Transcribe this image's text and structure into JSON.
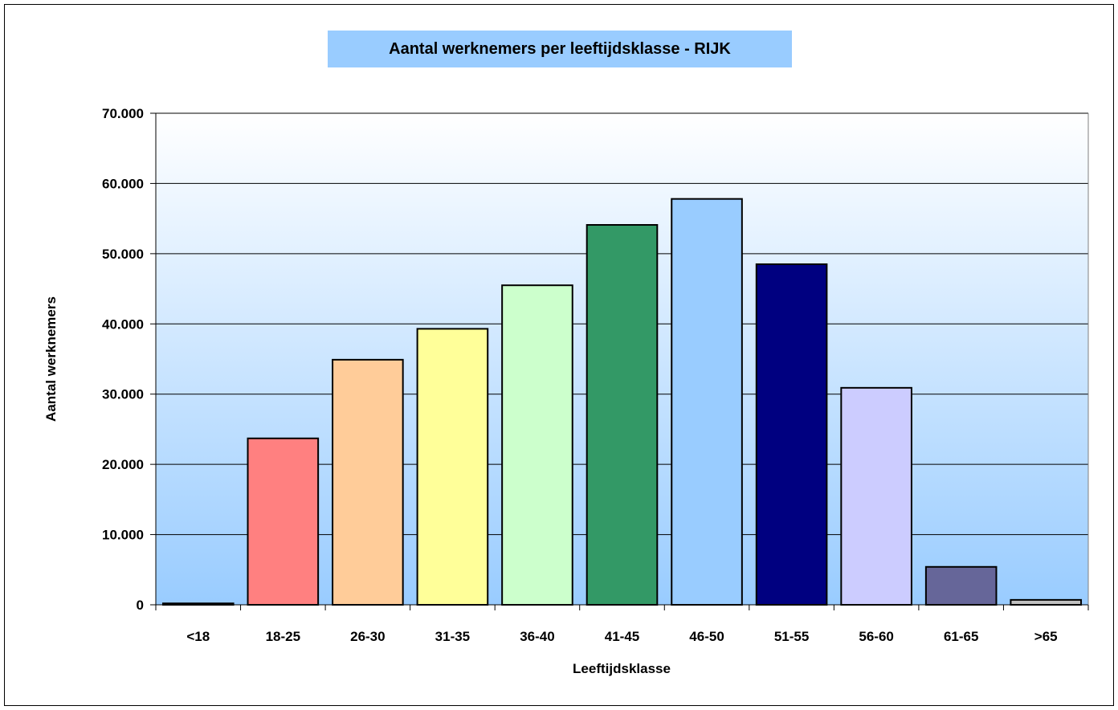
{
  "chart_data": {
    "type": "bar",
    "title": "Aantal werknemers per leeftijdsklasse - RIJK",
    "xlabel": "Leeftijdsklasse",
    "ylabel": "Aantal werknemers",
    "categories": [
      "<18",
      "18-25",
      "26-30",
      "31-35",
      "36-40",
      "41-45",
      "46-50",
      "51-55",
      "56-60",
      "61-65",
      ">65"
    ],
    "values": [
      200,
      23700,
      34900,
      39300,
      45500,
      54100,
      57800,
      48500,
      30900,
      5400,
      700
    ],
    "colors": [
      "#b3b3b3",
      "#ff8080",
      "#ffcc99",
      "#ffff99",
      "#ccffcc",
      "#339966",
      "#99ccff",
      "#000080",
      "#ccccff",
      "#666699",
      "#c0c0c0"
    ],
    "ylim": [
      0,
      70000
    ],
    "yticks": [
      0,
      10000,
      20000,
      30000,
      40000,
      50000,
      60000,
      70000
    ],
    "ytick_labels": [
      "0",
      "10.000",
      "20.000",
      "30.000",
      "40.000",
      "50.000",
      "60.000",
      "70.000"
    ],
    "grid": true,
    "plot_background": [
      "#ffffff",
      "#99ccff"
    ],
    "title_background": "#99ccff"
  }
}
